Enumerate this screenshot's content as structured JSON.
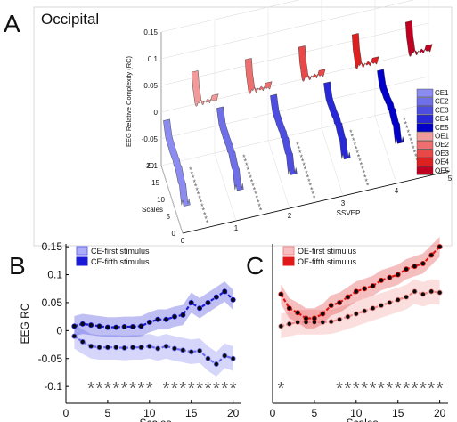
{
  "chart_data": [
    {
      "panel": "A",
      "title": "Occipital",
      "type": "3d-line",
      "zlabel": "EEG Relative Complexity (RC)",
      "ylabel_depth": "Scales",
      "xlabel": "SSVEP",
      "zlim": [
        -0.1,
        0.15
      ],
      "z_ticks": [
        "0.15",
        "0.1",
        "0.05",
        "0",
        "-0.05",
        "-0.1"
      ],
      "scale_ticks": [
        "0",
        "5",
        "10",
        "15",
        "20"
      ],
      "ssvep_ticks": [
        "0",
        "1",
        "2",
        "3",
        "4",
        "5"
      ],
      "legend": [
        "CE1",
        "CE2",
        "CE3",
        "CE4",
        "CE5",
        "OE1",
        "OE2",
        "OE3",
        "OE4",
        "OE5"
      ],
      "legend_colors": [
        "#8c8cf0",
        "#6f6fe8",
        "#4d4de0",
        "#2828d6",
        "#0000c8",
        "#f29a9a",
        "#ee6f6f",
        "#e84848",
        "#dd2020",
        "#c00020"
      ],
      "significance_marker": "*"
    },
    {
      "panel": "B",
      "type": "line",
      "ylabel": "EEG RC",
      "xlabel": "Scales",
      "xlim": [
        0,
        21
      ],
      "ylim": [
        -0.13,
        0.155
      ],
      "x_ticks": [
        "0",
        "5",
        "10",
        "15",
        "20"
      ],
      "y_ticks": [
        "0.15",
        "0.1",
        "0.05",
        "0",
        "-0.05",
        "-0.1"
      ],
      "legend_position": "top-left",
      "x": [
        1,
        2,
        3,
        4,
        5,
        6,
        7,
        8,
        9,
        10,
        11,
        12,
        13,
        14,
        15,
        16,
        17,
        18,
        19,
        20
      ],
      "series": [
        {
          "name": "CE-first stimulus",
          "color": "#6a6af2",
          "values": [
            -0.01,
            -0.02,
            -0.028,
            -0.03,
            -0.03,
            -0.03,
            -0.031,
            -0.03,
            -0.03,
            -0.028,
            -0.032,
            -0.028,
            -0.032,
            -0.035,
            -0.038,
            -0.036,
            -0.05,
            -0.06,
            -0.045,
            -0.05
          ]
        },
        {
          "name": "CE-fifth stimulus",
          "color": "#1a1ad6",
          "values": [
            0.008,
            0.012,
            0.01,
            0.008,
            0.006,
            0.006,
            0.007,
            0.007,
            0.008,
            0.015,
            0.02,
            0.02,
            0.025,
            0.028,
            0.05,
            0.04,
            0.05,
            0.06,
            0.07,
            0.055
          ]
        }
      ],
      "significance_at": [
        3,
        4,
        5,
        6,
        7,
        8,
        9,
        10,
        12,
        13,
        14,
        15,
        16,
        17,
        18,
        19,
        20
      ]
    },
    {
      "panel": "C",
      "type": "line",
      "xlabel": "Scales",
      "xlim": [
        0,
        21
      ],
      "ylim": [
        -0.13,
        0.155
      ],
      "x_ticks": [
        "0",
        "5",
        "10",
        "15",
        "20"
      ],
      "legend_position": "top-left",
      "x": [
        1,
        2,
        3,
        4,
        5,
        6,
        7,
        8,
        9,
        10,
        11,
        12,
        13,
        14,
        15,
        16,
        17,
        18,
        19,
        20
      ],
      "series": [
        {
          "name": "OE-first stimulus",
          "color": "#f08a8a",
          "values": [
            0.008,
            0.012,
            0.015,
            0.015,
            0.015,
            0.015,
            0.016,
            0.02,
            0.025,
            0.03,
            0.035,
            0.04,
            0.045,
            0.05,
            0.055,
            0.06,
            0.07,
            0.065,
            0.07,
            0.068
          ]
        },
        {
          "name": "OE-fifth stimulus",
          "color": "#e01818",
          "values": [
            0.065,
            0.04,
            0.032,
            0.022,
            0.022,
            0.03,
            0.045,
            0.05,
            0.06,
            0.07,
            0.075,
            0.08,
            0.09,
            0.095,
            0.1,
            0.11,
            0.115,
            0.12,
            0.135,
            0.15
          ]
        }
      ],
      "significance_at": [
        1,
        8,
        9,
        10,
        11,
        12,
        13,
        14,
        15,
        16,
        17,
        18,
        19,
        20
      ]
    }
  ]
}
